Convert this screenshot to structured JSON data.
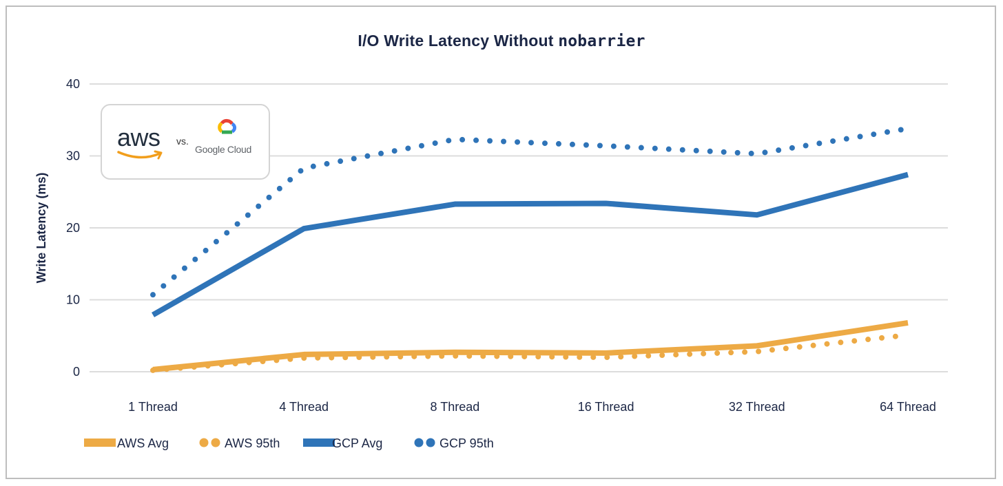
{
  "chart_data": {
    "type": "line",
    "title": "I/O Write Latency Without",
    "title_code": "nobarrier",
    "xlabel": "",
    "ylabel": "Write Latency (ms)",
    "categories": [
      "1 Thread",
      "4 Thread",
      "8 Thread",
      "16 Thread",
      "32 Thread",
      "64 Thread"
    ],
    "yticks": [
      0,
      10,
      20,
      30,
      40
    ],
    "ylim": [
      0,
      40
    ],
    "grid": true,
    "legend_position": "bottom-left",
    "series": [
      {
        "name": "AWS Avg",
        "style": "solid",
        "color": "#EDAA45",
        "values": [
          0.3,
          2.4,
          2.7,
          2.6,
          3.6,
          6.8
        ]
      },
      {
        "name": "AWS 95th",
        "style": "dotted",
        "color": "#EDAA45",
        "values": [
          0.2,
          1.9,
          2.2,
          2.0,
          2.8,
          5.1
        ]
      },
      {
        "name": "GCP Avg",
        "style": "solid",
        "color": "#2F74B8",
        "values": [
          7.9,
          19.9,
          23.3,
          23.4,
          21.8,
          27.4
        ]
      },
      {
        "name": "GCP 95th",
        "style": "dotted",
        "color": "#2F74B8",
        "values": [
          10.7,
          28.3,
          32.3,
          31.4,
          30.3,
          33.8
        ]
      }
    ]
  },
  "logo": {
    "left_brand": "aws",
    "separator": "vs.",
    "right_brand": "Google Cloud"
  }
}
